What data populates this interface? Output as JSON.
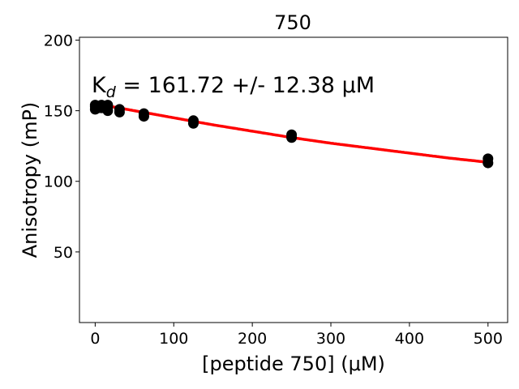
{
  "chart_data": {
    "type": "scatter",
    "title": "750",
    "xlabel": "[peptide 750] (μM)",
    "ylabel": "Anisotropy (mP)",
    "xlim": [
      -20,
      525
    ],
    "ylim": [
      0,
      202
    ],
    "xticks": [
      0,
      100,
      200,
      300,
      400,
      500
    ],
    "yticks": [
      50,
      100,
      150,
      200
    ],
    "grid": false,
    "annotation": {
      "text": "K",
      "subscript": "d",
      "rest": " = 161.72 +/- 12.38 ",
      "unit": "μM"
    },
    "series": [
      {
        "kind": "points",
        "color": "#000000",
        "points": [
          {
            "x": 0,
            "y": 151
          },
          {
            "x": 0,
            "y": 153
          },
          {
            "x": 0,
            "y": 154
          },
          {
            "x": 4,
            "y": 152
          },
          {
            "x": 4,
            "y": 153
          },
          {
            "x": 8,
            "y": 152
          },
          {
            "x": 8,
            "y": 154
          },
          {
            "x": 16,
            "y": 150
          },
          {
            "x": 16,
            "y": 152
          },
          {
            "x": 16,
            "y": 154
          },
          {
            "x": 31,
            "y": 149
          },
          {
            "x": 31,
            "y": 151
          },
          {
            "x": 62,
            "y": 146
          },
          {
            "x": 62,
            "y": 148
          },
          {
            "x": 125,
            "y": 141
          },
          {
            "x": 125,
            "y": 143
          },
          {
            "x": 250,
            "y": 131
          },
          {
            "x": 250,
            "y": 133
          },
          {
            "x": 500,
            "y": 113
          },
          {
            "x": 500,
            "y": 116
          }
        ]
      },
      {
        "kind": "fit-curve",
        "color": "#ff0000",
        "points": [
          {
            "x": 0,
            "y": 155
          },
          {
            "x": 50,
            "y": 150
          },
          {
            "x": 100,
            "y": 145
          },
          {
            "x": 150,
            "y": 140
          },
          {
            "x": 200,
            "y": 135.5
          },
          {
            "x": 250,
            "y": 131
          },
          {
            "x": 300,
            "y": 127
          },
          {
            "x": 350,
            "y": 123.5
          },
          {
            "x": 400,
            "y": 120
          },
          {
            "x": 450,
            "y": 116.5
          },
          {
            "x": 500,
            "y": 113.5
          }
        ]
      }
    ]
  }
}
